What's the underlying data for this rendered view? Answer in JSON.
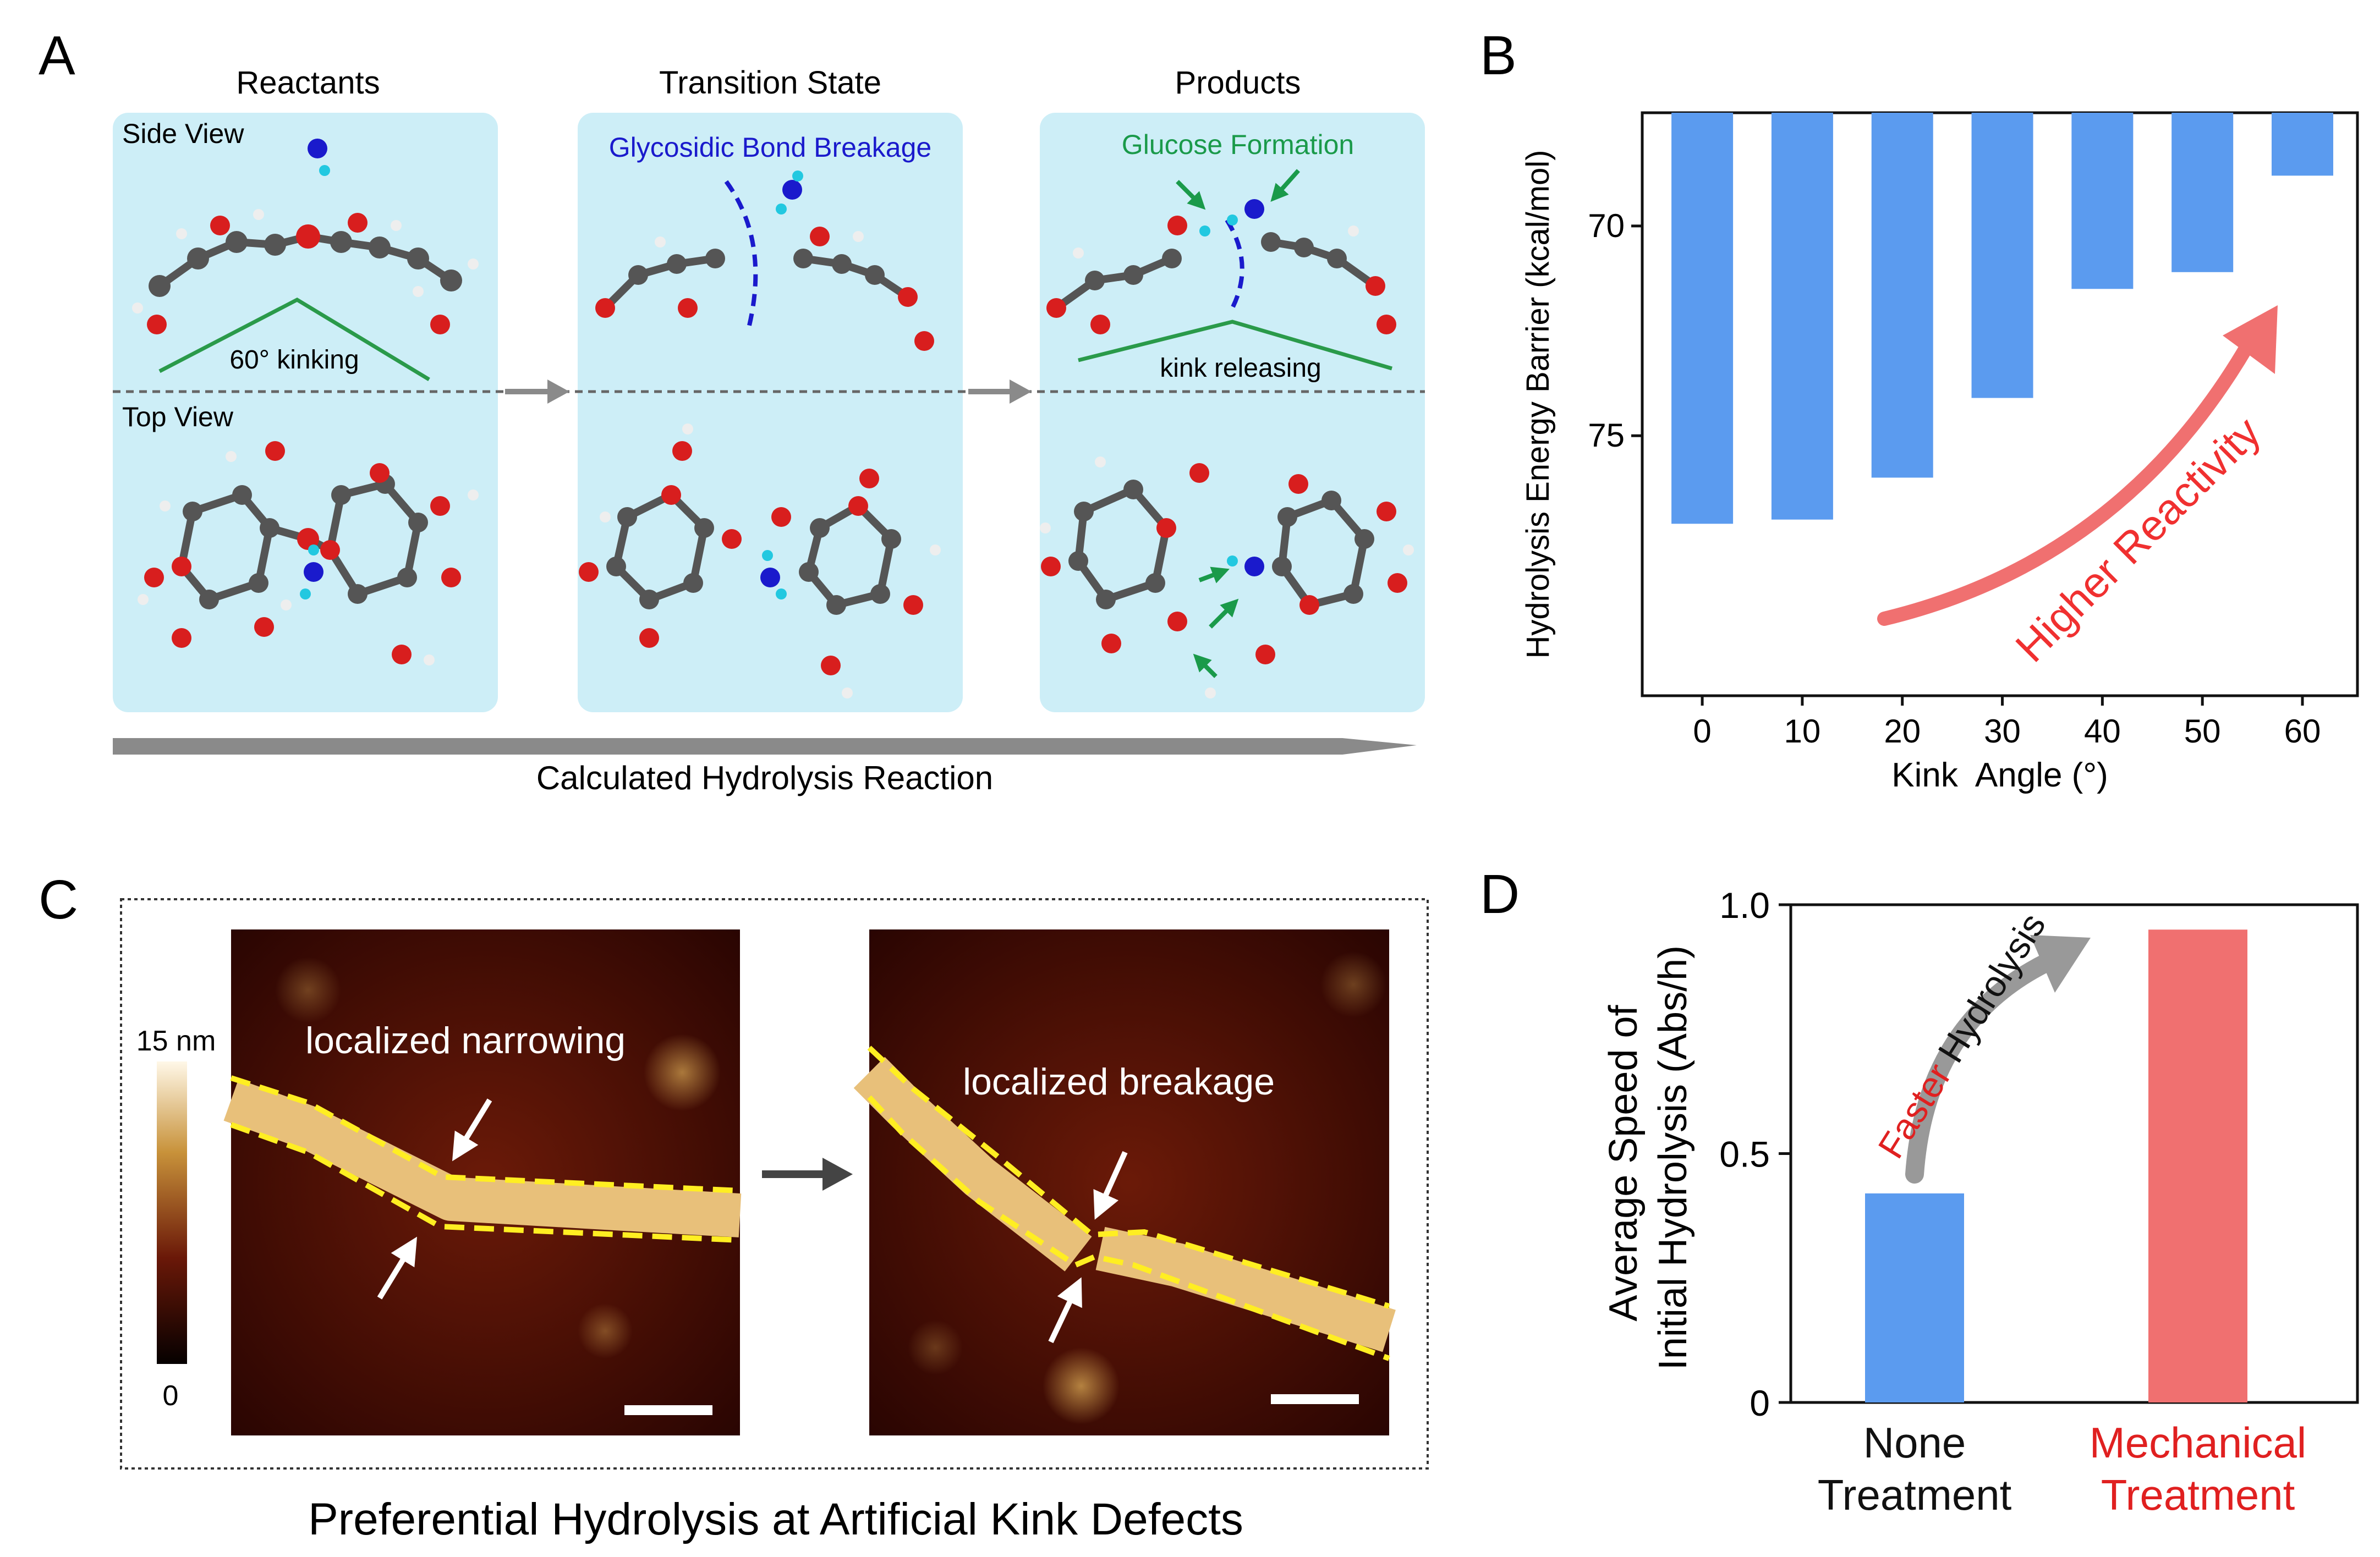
{
  "panel_a": {
    "letter": "A",
    "columns": [
      "Reactants",
      "Transition State",
      "Products"
    ],
    "side_view": "Side View",
    "top_view": "Top View",
    "kinking": "60° kinking",
    "bond_breakage": "Glycosidic Bond Breakage",
    "glucose_formation": "Glucose Formation",
    "kink_releasing": "kink releasing",
    "axis_caption": "Calculated Hydrolysis Reaction",
    "colors": {
      "box": "#cdeef7",
      "bond_break": "#1a1acc",
      "glucose": "#1a9a4a",
      "kink_line": "#2a9a4a",
      "carbon": "#555555",
      "oxygen": "#d81e1e",
      "hydrogen": "#e8e8e8",
      "nitrogen": "#1a1acc",
      "arrow": "#8a8a8a"
    }
  },
  "panel_b": {
    "letter": "B",
    "annotation": "Higher Reactivity",
    "chart_data": {
      "type": "bar",
      "categories": [
        "0",
        "10",
        "20",
        "30",
        "40",
        "50",
        "60"
      ],
      "values": [
        77.1,
        77.0,
        76.0,
        74.1,
        71.5,
        71.1,
        68.8
      ],
      "ylim": [
        81.2,
        67.3
      ],
      "y_inverted": true,
      "yticks": [
        "70",
        "75"
      ],
      "xlabel": "Kink  Angle (°)",
      "ylabel": "Hydrolysis Energy Barrier (kcal/mol)",
      "bar_color": "#5b9bef"
    }
  },
  "panel_c": {
    "letter": "C",
    "scale_top": "15 nm",
    "scale_bottom": "0",
    "narrowing": "localized narrowing",
    "breakage": "localized breakage",
    "caption": "Preferential Hydrolysis at Artificial Kink Defects",
    "colors": {
      "outline": "#ffee22",
      "fiber": "#e8c07a",
      "background": "#4a0c04"
    }
  },
  "panel_d": {
    "letter": "D",
    "annotation_red": "Faster",
    "annotation_black": " Hydrolysis",
    "chart_data": {
      "type": "bar",
      "categories": [
        "None Treatment",
        "Mechanical Treatment"
      ],
      "category_lines": [
        [
          "None",
          "Treatment"
        ],
        [
          "Mechanical",
          "Treatment"
        ]
      ],
      "values": [
        0.42,
        0.95
      ],
      "colors": [
        "#5b9bef",
        "#f07070"
      ],
      "label_colors": [
        "#111111",
        "#e02020"
      ],
      "ylim": [
        0,
        1.0
      ],
      "yticks": [
        "0",
        "0.5",
        "1.0"
      ],
      "ylabel_lines": [
        "Average Speed of",
        "Initial Hydrolysis (Abs/h)"
      ]
    }
  }
}
